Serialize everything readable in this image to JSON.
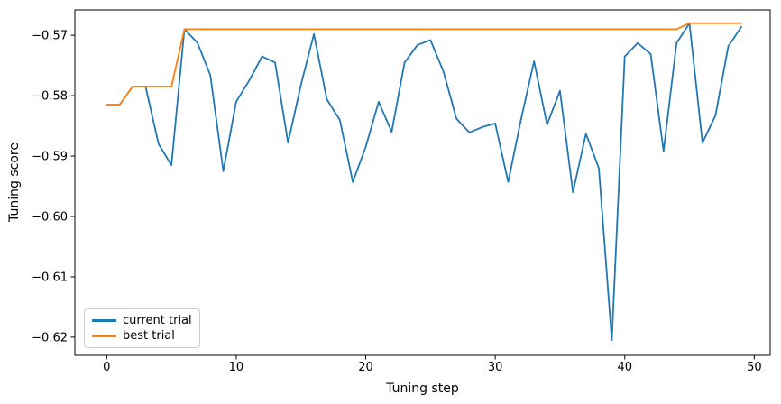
{
  "figure": {
    "background": "#ffffff",
    "text_color": "#000000",
    "spine_color": "#000000"
  },
  "chart_data": {
    "type": "line",
    "title": "",
    "xlabel": "Tuning step",
    "ylabel": "Tuning score",
    "grid": false,
    "legend": {
      "position": "lower-left",
      "border_color": "#cccccc"
    },
    "x": [
      0,
      1,
      2,
      3,
      4,
      5,
      6,
      7,
      8,
      9,
      10,
      11,
      12,
      13,
      14,
      15,
      16,
      17,
      18,
      19,
      20,
      21,
      22,
      23,
      24,
      25,
      26,
      27,
      28,
      29,
      30,
      31,
      32,
      33,
      34,
      35,
      36,
      37,
      38,
      39,
      40,
      41,
      42,
      43,
      44,
      45,
      46,
      47,
      48,
      49
    ],
    "series": [
      {
        "name": "current trial",
        "color": "#1f77b4",
        "values": [
          -0.5815,
          -0.5815,
          -0.5785,
          -0.5785,
          -0.588,
          -0.5915,
          -0.569,
          -0.5712,
          -0.5766,
          -0.5925,
          -0.581,
          -0.5775,
          -0.5735,
          -0.5745,
          -0.5878,
          -0.5782,
          -0.5698,
          -0.5806,
          -0.584,
          -0.5943,
          -0.5885,
          -0.581,
          -0.586,
          -0.5745,
          -0.5716,
          -0.5708,
          -0.576,
          -0.5838,
          -0.5861,
          -0.5852,
          -0.5846,
          -0.5943,
          -0.5838,
          -0.5743,
          -0.5848,
          -0.5792,
          -0.596,
          -0.5863,
          -0.592,
          -0.6205,
          -0.5735,
          -0.5713,
          -0.5731,
          -0.5892,
          -0.5713,
          -0.568,
          -0.5878,
          -0.5833,
          -0.5718,
          -0.5686
        ]
      },
      {
        "name": "best trial",
        "color": "#ff7f0e",
        "values": [
          -0.5815,
          -0.5815,
          -0.5785,
          -0.5785,
          -0.5785,
          -0.5785,
          -0.569,
          -0.569,
          -0.569,
          -0.569,
          -0.569,
          -0.569,
          -0.569,
          -0.569,
          -0.569,
          -0.569,
          -0.569,
          -0.569,
          -0.569,
          -0.569,
          -0.569,
          -0.569,
          -0.569,
          -0.569,
          -0.569,
          -0.569,
          -0.569,
          -0.569,
          -0.569,
          -0.569,
          -0.569,
          -0.569,
          -0.569,
          -0.569,
          -0.569,
          -0.569,
          -0.569,
          -0.569,
          -0.569,
          -0.569,
          -0.569,
          -0.569,
          -0.569,
          -0.569,
          -0.569,
          -0.568,
          -0.568,
          -0.568,
          -0.568,
          -0.568
        ]
      }
    ],
    "xlim": [
      -2.46,
      51.23
    ],
    "ylim": [
      -0.623,
      -0.5658
    ],
    "xticks": {
      "values": [
        0,
        10,
        20,
        30,
        40,
        50
      ],
      "labels": [
        "0",
        "10",
        "20",
        "30",
        "40",
        "50"
      ]
    },
    "yticks": {
      "values": [
        -0.57,
        -0.58,
        -0.59,
        -0.6,
        -0.61,
        -0.62
      ],
      "labels": [
        "−0.57",
        "−0.58",
        "−0.59",
        "−0.60",
        "−0.61",
        "−0.62"
      ]
    }
  }
}
